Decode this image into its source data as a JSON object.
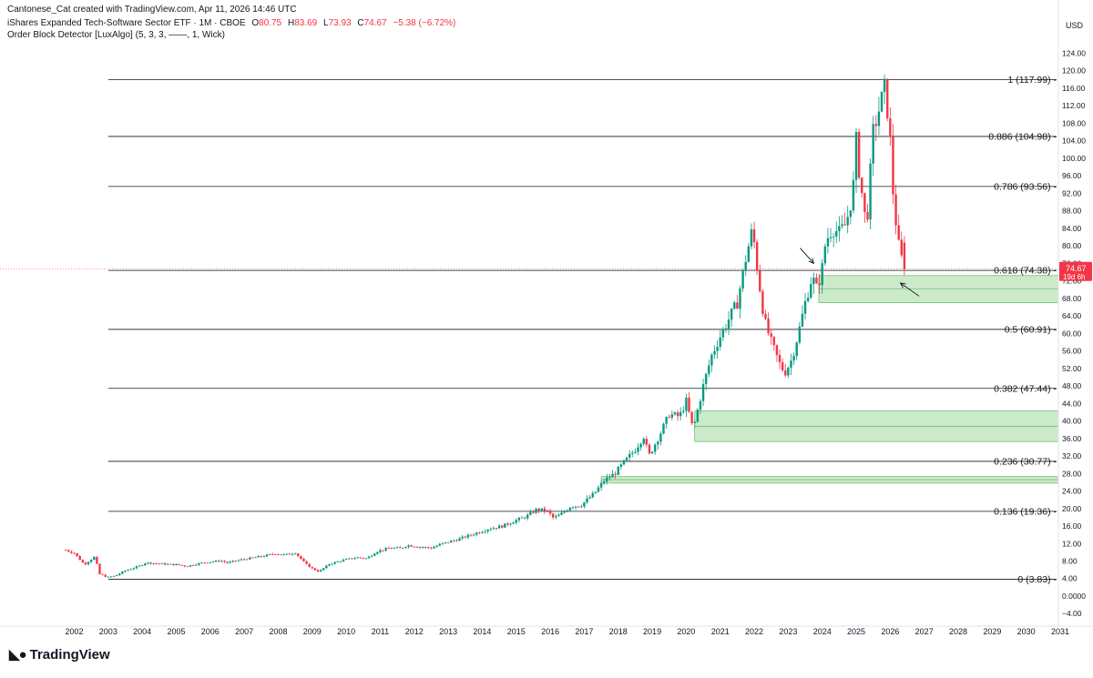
{
  "header": {
    "credit": "Cantonese_Cat created with TradingView.com, Apr 11, 2026 14:46 UTC",
    "symbol": "iShares Expanded Tech-Software Sector ETF · 1M · CBOE",
    "open_label": "O",
    "open": "80.75",
    "high_label": "H",
    "high": "83.69",
    "low_label": "L",
    "low": "73.93",
    "close_label": "C",
    "close": "74.67",
    "change": "−5.38 (−6.72%)",
    "indicator": "Order Block Detector [LuxAlgo] (5, 3, 3, ——, 1, Wick)"
  },
  "brand": {
    "name": "TradingView",
    "logo": "tradingview-logo-icon"
  },
  "colors": {
    "up": "#089981",
    "down": "#f23645",
    "zone": "#b7e1b2",
    "zone_border": "#4caf50",
    "fib_line": "#131722"
  },
  "chart_data": {
    "type": "candlestick",
    "currency": "USD",
    "ylim": [
      -6,
      128
    ],
    "y_ticks": [
      "124.00",
      "120.00",
      "116.00",
      "112.00",
      "108.00",
      "104.00",
      "100.00",
      "96.00",
      "92.00",
      "88.00",
      "84.00",
      "80.00",
      "76.00",
      "72.00",
      "68.00",
      "64.00",
      "60.00",
      "56.00",
      "52.00",
      "48.00",
      "44.00",
      "40.00",
      "36.00",
      "32.00",
      "28.00",
      "24.00",
      "20.00",
      "16.00",
      "12.00",
      "8.00",
      "4.00",
      "0.0000",
      "−4.00"
    ],
    "y_tick_values": [
      124,
      120,
      116,
      112,
      108,
      104,
      100,
      96,
      92,
      88,
      84,
      80,
      76,
      72,
      68,
      64,
      60,
      56,
      52,
      48,
      44,
      40,
      36,
      32,
      28,
      24,
      20,
      16,
      12,
      8,
      4,
      0,
      -4
    ],
    "x_ticks": [
      "2002",
      "2003",
      "2004",
      "2005",
      "2006",
      "2007",
      "2008",
      "2009",
      "2010",
      "2011",
      "2012",
      "2013",
      "2014",
      "2015",
      "2016",
      "2017",
      "2018",
      "2019",
      "2020",
      "2021",
      "2022",
      "2023",
      "2024",
      "2025",
      "2026",
      "2027",
      "2028",
      "2029",
      "2030",
      "2031"
    ],
    "x_tick_years": [
      2002,
      2003,
      2004,
      2005,
      2006,
      2007,
      2008,
      2009,
      2010,
      2011,
      2012,
      2013,
      2014,
      2015,
      2016,
      2017,
      2018,
      2019,
      2020,
      2021,
      2022,
      2023,
      2024,
      2025,
      2026,
      2027,
      2028,
      2029,
      2030,
      2031
    ],
    "price_label": {
      "value": "74.67",
      "countdown": "19d 6h"
    },
    "fib_levels": [
      {
        "ratio": 1,
        "value": 117.99,
        "label": "1 (117.99)"
      },
      {
        "ratio": 0.886,
        "value": 104.98,
        "label": "0.886 (104.98)"
      },
      {
        "ratio": 0.786,
        "value": 93.56,
        "label": "0.786 (93.56)"
      },
      {
        "ratio": 0.618,
        "value": 74.38,
        "label": "0.618 (74.38)"
      },
      {
        "ratio": 0.5,
        "value": 60.91,
        "label": "0.5 (60.91)"
      },
      {
        "ratio": 0.382,
        "value": 47.44,
        "label": "0.382 (47.44)"
      },
      {
        "ratio": 0.236,
        "value": 30.77,
        "label": "0.236 (30.77)"
      },
      {
        "ratio": 0.136,
        "value": 19.36,
        "label": "0.136 (19.36)"
      },
      {
        "ratio": 0,
        "value": 3.83,
        "label": "0 (3.83)"
      }
    ],
    "fib_start_year": 2003.0,
    "order_blocks": [
      {
        "start": 2023.9,
        "top": 73.2,
        "bottom": 67.0,
        "mid": 70.2
      },
      {
        "start": 2020.25,
        "top": 42.3,
        "bottom": 35.3,
        "mid": 38.8
      },
      {
        "start": 2017.5,
        "top": 27.3,
        "bottom": 25.8,
        "mid": 26.6
      }
    ],
    "arrows": [
      {
        "from_t": 2023.35,
        "from_v": 79.5,
        "to_t": 2023.75,
        "to_v": 76.0
      },
      {
        "from_t": 2026.85,
        "from_v": 68.5,
        "to_t": 2026.3,
        "to_v": 71.5
      }
    ],
    "candle_anchors": [
      [
        2001.75,
        10.5
      ],
      [
        2002.0,
        9.8
      ],
      [
        2002.3,
        7.2
      ],
      [
        2002.6,
        9.0
      ],
      [
        2002.75,
        5.0
      ],
      [
        2003.0,
        4.3
      ],
      [
        2003.2,
        4.6
      ],
      [
        2003.5,
        5.8
      ],
      [
        2003.9,
        6.8
      ],
      [
        2004.1,
        7.6
      ],
      [
        2004.5,
        7.4
      ],
      [
        2004.9,
        7.2
      ],
      [
        2005.0,
        7.2
      ],
      [
        2005.3,
        6.8
      ],
      [
        2005.7,
        7.5
      ],
      [
        2005.9,
        7.7
      ],
      [
        2006.3,
        8.1
      ],
      [
        2006.5,
        7.6
      ],
      [
        2006.9,
        8.3
      ],
      [
        2007.3,
        8.8
      ],
      [
        2007.6,
        9.2
      ],
      [
        2007.9,
        9.7
      ],
      [
        2008.2,
        9.4
      ],
      [
        2008.5,
        9.9
      ],
      [
        2008.8,
        7.4
      ],
      [
        2009.0,
        6.3
      ],
      [
        2009.2,
        5.6
      ],
      [
        2009.5,
        7.3
      ],
      [
        2009.9,
        8.2
      ],
      [
        2010.3,
        8.8
      ],
      [
        2010.6,
        8.6
      ],
      [
        2010.9,
        10.2
      ],
      [
        2011.3,
        11.0
      ],
      [
        2011.6,
        10.9
      ],
      [
        2011.8,
        11.6
      ],
      [
        2012.2,
        11.2
      ],
      [
        2012.5,
        11.0
      ],
      [
        2012.8,
        11.9
      ],
      [
        2013.3,
        13.0
      ],
      [
        2013.9,
        14.6
      ],
      [
        2014.2,
        15.4
      ],
      [
        2014.6,
        16.0
      ],
      [
        2014.9,
        17.0
      ],
      [
        2015.3,
        18.2
      ],
      [
        2015.6,
        19.8
      ],
      [
        2015.9,
        19.5
      ],
      [
        2016.1,
        17.8
      ],
      [
        2016.3,
        18.6
      ],
      [
        2016.6,
        20.5
      ],
      [
        2016.9,
        20.7
      ],
      [
        2017.3,
        23.5
      ],
      [
        2017.6,
        26.5
      ],
      [
        2017.9,
        28.0
      ],
      [
        2018.2,
        30.8
      ],
      [
        2018.5,
        33.5
      ],
      [
        2018.75,
        36.5
      ],
      [
        2018.9,
        32.0
      ],
      [
        2019.2,
        36.5
      ],
      [
        2019.5,
        41.5
      ],
      [
        2019.8,
        41.0
      ],
      [
        2020.0,
        44.5
      ],
      [
        2020.2,
        38.0
      ],
      [
        2020.5,
        48.0
      ],
      [
        2020.75,
        55.0
      ],
      [
        2020.95,
        58.5
      ],
      [
        2021.2,
        62.5
      ],
      [
        2021.5,
        67.0
      ],
      [
        2021.75,
        77.0
      ],
      [
        2021.95,
        84.0
      ],
      [
        2022.1,
        74.0
      ],
      [
        2022.3,
        63.0
      ],
      [
        2022.5,
        58.0
      ],
      [
        2022.75,
        53.0
      ],
      [
        2022.9,
        51.0
      ],
      [
        2023.1,
        54.0
      ],
      [
        2023.3,
        60.0
      ],
      [
        2023.5,
        67.0
      ],
      [
        2023.7,
        73.0
      ],
      [
        2023.85,
        70.0
      ],
      [
        2024.0,
        75.0
      ],
      [
        2024.1,
        81.0
      ],
      [
        2024.3,
        84.0
      ],
      [
        2024.5,
        83.0
      ],
      [
        2024.7,
        85.0
      ],
      [
        2024.9,
        92.0
      ],
      [
        2025.0,
        104.0
      ],
      [
        2025.1,
        96.0
      ],
      [
        2025.3,
        84.0
      ],
      [
        2025.5,
        106.0
      ],
      [
        2025.7,
        112.0
      ],
      [
        2025.85,
        116.5
      ],
      [
        2026.0,
        104.0
      ],
      [
        2026.1,
        90.0
      ],
      [
        2026.25,
        80.0
      ],
      [
        2026.4,
        74.67
      ]
    ]
  }
}
